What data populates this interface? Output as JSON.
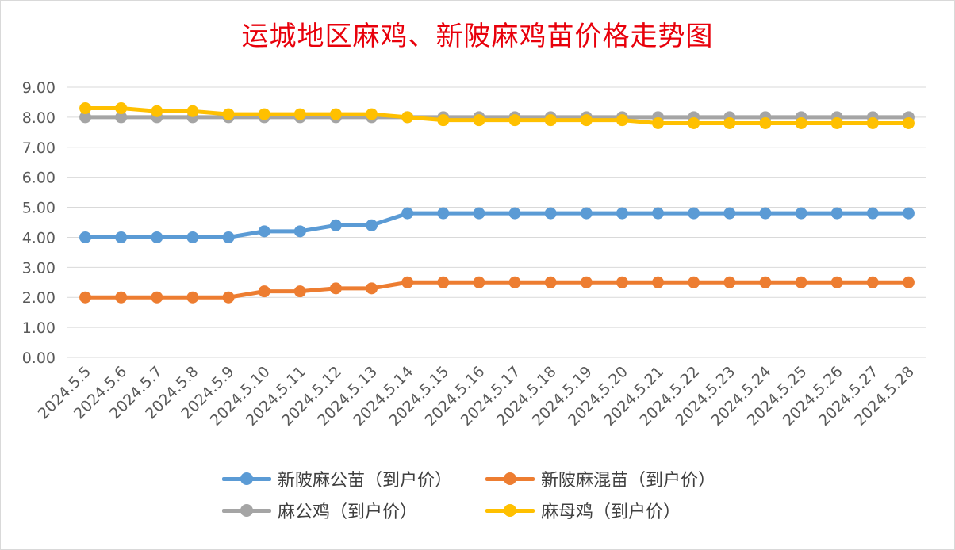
{
  "chart_data": {
    "type": "line",
    "title": "运城地区麻鸡、新陂麻鸡苗价格走势图",
    "categories": [
      "2024.5.5",
      "2024.5.6",
      "2024.5.7",
      "2024.5.8",
      "2024.5.9",
      "2024.5.10",
      "2024.5.11",
      "2024.5.12",
      "2024.5.13",
      "2024.5.14",
      "2024.5.15",
      "2024.5.16",
      "2024.5.17",
      "2024.5.18",
      "2024.5.19",
      "2024.5.20",
      "2024.5.21",
      "2024.5.22",
      "2024.5.23",
      "2024.5.24",
      "2024.5.25",
      "2024.5.26",
      "2024.5.27",
      "2024.5.28"
    ],
    "y_ticks": [
      "0.00",
      "1.00",
      "2.00",
      "3.00",
      "4.00",
      "5.00",
      "6.00",
      "7.00",
      "8.00",
      "9.00"
    ],
    "ylim": [
      0,
      9
    ],
    "grid": true,
    "legend_position": "bottom",
    "series": [
      {
        "name": "新陂麻公苗（到户价）",
        "color": "#5b9bd5",
        "values": [
          4.0,
          4.0,
          4.0,
          4.0,
          4.0,
          4.2,
          4.2,
          4.4,
          4.4,
          4.8,
          4.8,
          4.8,
          4.8,
          4.8,
          4.8,
          4.8,
          4.8,
          4.8,
          4.8,
          4.8,
          4.8,
          4.8,
          4.8,
          4.8
        ]
      },
      {
        "name": "新陂麻混苗（到户价）",
        "color": "#ed7d31",
        "values": [
          2.0,
          2.0,
          2.0,
          2.0,
          2.0,
          2.2,
          2.2,
          2.3,
          2.3,
          2.5,
          2.5,
          2.5,
          2.5,
          2.5,
          2.5,
          2.5,
          2.5,
          2.5,
          2.5,
          2.5,
          2.5,
          2.5,
          2.5,
          2.5
        ]
      },
      {
        "name": "麻公鸡（到户价）",
        "color": "#a5a5a5",
        "values": [
          8.0,
          8.0,
          8.0,
          8.0,
          8.0,
          8.0,
          8.0,
          8.0,
          8.0,
          8.0,
          8.0,
          8.0,
          8.0,
          8.0,
          8.0,
          8.0,
          8.0,
          8.0,
          8.0,
          8.0,
          8.0,
          8.0,
          8.0,
          8.0
        ]
      },
      {
        "name": "麻母鸡（到户价）",
        "color": "#ffc000",
        "values": [
          8.3,
          8.3,
          8.2,
          8.2,
          8.1,
          8.1,
          8.1,
          8.1,
          8.1,
          8.0,
          7.9,
          7.9,
          7.9,
          7.9,
          7.9,
          7.9,
          7.8,
          7.8,
          7.8,
          7.8,
          7.8,
          7.8,
          7.8,
          7.8
        ]
      }
    ]
  }
}
